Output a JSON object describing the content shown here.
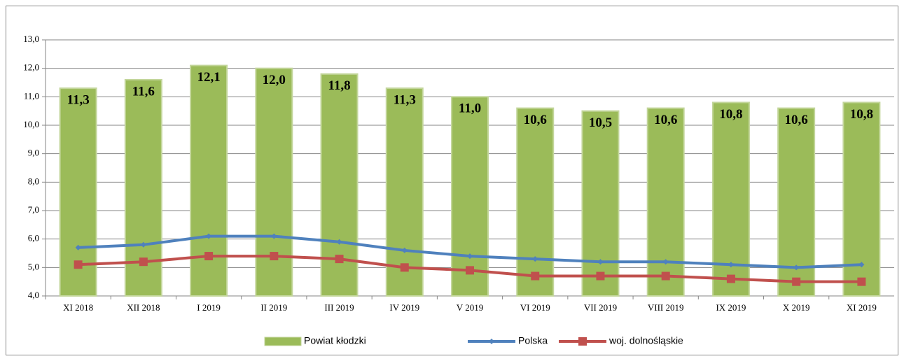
{
  "chart_data": {
    "type": "combo",
    "categories": [
      "XI 2018",
      "XII 2018",
      "I 2019",
      "II 2019",
      "III 2019",
      "IV 2019",
      "V 2019",
      "VI 2019",
      "VII 2019",
      "VIII 2019",
      "IX 2019",
      "X 2019",
      "XI 2019"
    ],
    "series": [
      {
        "name": "Powiat kłodzki",
        "type": "bar",
        "color": "#9bbb59",
        "values": [
          11.3,
          11.6,
          12.1,
          12.0,
          11.8,
          11.3,
          11.0,
          10.6,
          10.5,
          10.6,
          10.8,
          10.6,
          10.8
        ],
        "value_labels": [
          "11,3",
          "11,6",
          "12,1",
          "12,0",
          "11,8",
          "11,3",
          "11,0",
          "10,6",
          "10,5",
          "10,6",
          "10,8",
          "10,6",
          "10,8"
        ]
      },
      {
        "name": "Polska",
        "type": "line",
        "color": "#4f81bd",
        "values": [
          5.7,
          5.8,
          6.1,
          6.1,
          5.9,
          5.6,
          5.4,
          5.3,
          5.2,
          5.2,
          5.1,
          5.0,
          5.1
        ]
      },
      {
        "name": "woj. dolnośląskie",
        "type": "line",
        "color": "#c0504d",
        "values": [
          5.1,
          5.2,
          5.4,
          5.4,
          5.3,
          5.0,
          4.9,
          4.7,
          4.7,
          4.7,
          4.6,
          4.5,
          4.5
        ]
      }
    ],
    "ylim": [
      4,
      13
    ],
    "yticks": [
      {
        "value": 4,
        "label": "4,0"
      },
      {
        "value": 5,
        "label": "5,0"
      },
      {
        "value": 6,
        "label": "6,0"
      },
      {
        "value": 7,
        "label": "7,0"
      },
      {
        "value": 8,
        "label": "8,0"
      },
      {
        "value": 9,
        "label": "9,0"
      },
      {
        "value": 10,
        "label": "10,0"
      },
      {
        "value": 11,
        "label": "11,0"
      },
      {
        "value": 12,
        "label": "12,0"
      },
      {
        "value": 13,
        "label": "13,0"
      }
    ],
    "grid": true,
    "legend": "bottom"
  }
}
